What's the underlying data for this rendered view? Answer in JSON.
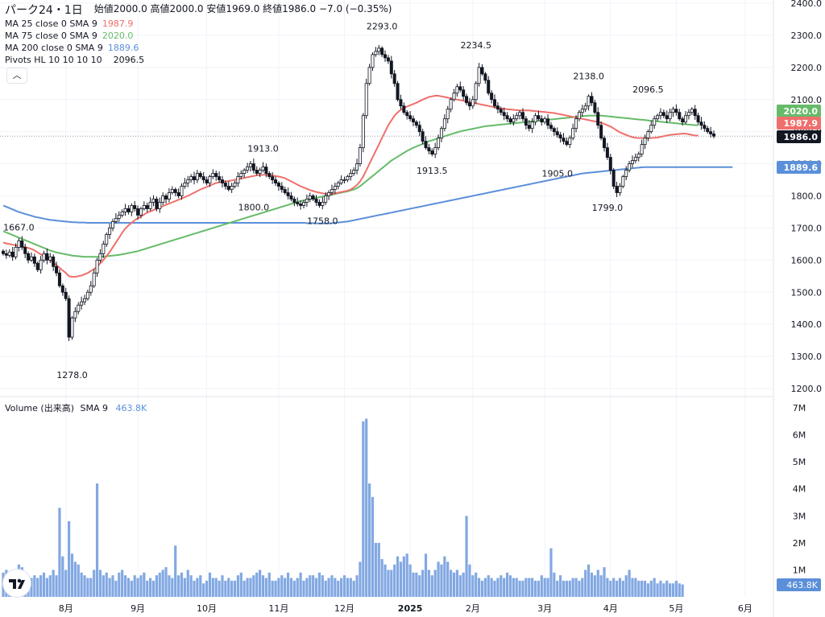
{
  "legend": {
    "symbol": "パーク24・1日",
    "ohlc": "始値2000.0 高値2000.0 安値1969.0 終値1986.0 −7.0 (−0.35%)",
    "ma25_label": "MA 25 close 0 SMA 9",
    "ma25_value": "1987.9",
    "ma75_label": "MA 75 close 0 SMA 9",
    "ma75_value": "2020.0",
    "ma200_label": "MA 200 close 0 SMA 9",
    "ma200_value": "1889.6",
    "pivots_label": "Pivots HL 10 10 10 10",
    "pivots_value": "2096.5",
    "collapse": "︿"
  },
  "volume_legend": {
    "label": "Volume (出来高)",
    "sma": "SMA 9",
    "value": "463.8K"
  },
  "colors": {
    "up": "#ffffff",
    "down": "#131722",
    "ma25": "#ef6f6c",
    "ma75": "#66bb6a",
    "ma200": "#5b8fd9",
    "volume": "#82a8e2"
  },
  "chart_data": {
    "type": "candlestick",
    "price_axis": {
      "ylim": [
        1200,
        2400
      ],
      "ticks": [
        "1200.0",
        "1300.0",
        "1400.0",
        "1500.0",
        "1600.0",
        "1700.0",
        "1800.0",
        "1900.0",
        "2000.0",
        "2100.0",
        "2200.0",
        "2300.0",
        "2400.0"
      ]
    },
    "volume_axis": {
      "ylim": [
        0,
        7000000
      ],
      "ticks": [
        "1M",
        "2M",
        "3M",
        "4M",
        "5M",
        "6M",
        "7M"
      ]
    },
    "time_axis": {
      "ticks": [
        "8月",
        "9月",
        "10月",
        "11月",
        "12月",
        "2025",
        "2月",
        "3月",
        "4月",
        "5月",
        "6月"
      ]
    },
    "last_price": "1986.0",
    "price_labels": [
      {
        "text": "2020.0",
        "series": "ma75"
      },
      {
        "text": "1987.9",
        "series": "ma25"
      },
      {
        "text": "1986.0",
        "series": "last"
      },
      {
        "text": "1889.6",
        "series": "ma200"
      }
    ],
    "volume_last_label": "463.8K",
    "pivots": [
      {
        "label": "1667.0",
        "bar": 5,
        "value": 1667,
        "pos": "above"
      },
      {
        "label": "1278.0",
        "bar": 22,
        "value": 1278,
        "pos": "below"
      },
      {
        "label": "1913.0",
        "bar": 83,
        "value": 1913,
        "pos": "above"
      },
      {
        "label": "1800.0",
        "bar": 80,
        "value": 1800,
        "pos": "below"
      },
      {
        "label": "1758.0",
        "bar": 102,
        "value": 1758,
        "pos": "below"
      },
      {
        "label": "2293.0",
        "bar": 121,
        "value": 2293,
        "pos": "above"
      },
      {
        "label": "1913.5",
        "bar": 137,
        "value": 1913.5,
        "pos": "below"
      },
      {
        "label": "2234.5",
        "bar": 151,
        "value": 2234.5,
        "pos": "above"
      },
      {
        "label": "2138.0",
        "bar": 187,
        "value": 2138,
        "pos": "above"
      },
      {
        "label": "1905.0",
        "bar": 177,
        "value": 1905,
        "pos": "below"
      },
      {
        "label": "1799.0",
        "bar": 193,
        "value": 1799,
        "pos": "below"
      },
      {
        "label": "2096.5",
        "bar": 206,
        "value": 2096.5,
        "pos": "above"
      }
    ],
    "closes": [
      1620,
      1615,
      1625,
      1610,
      1640,
      1660,
      1640,
      1620,
      1600,
      1610,
      1590,
      1570,
      1600,
      1620,
      1600,
      1610,
      1580,
      1560,
      1520,
      1500,
      1480,
      1360,
      1420,
      1440,
      1460,
      1470,
      1480,
      1500,
      1520,
      1560,
      1600,
      1620,
      1650,
      1680,
      1700,
      1720,
      1730,
      1740,
      1750,
      1760,
      1750,
      1770,
      1760,
      1740,
      1760,
      1770,
      1760,
      1780,
      1790,
      1760,
      1780,
      1800,
      1790,
      1810,
      1820,
      1810,
      1800,
      1830,
      1840,
      1850,
      1860,
      1850,
      1870,
      1860,
      1850,
      1840,
      1860,
      1870,
      1860,
      1850,
      1840,
      1830,
      1820,
      1830,
      1840,
      1860,
      1870,
      1880,
      1890,
      1900,
      1880,
      1870,
      1880,
      1890,
      1870,
      1860,
      1850,
      1840,
      1830,
      1820,
      1810,
      1800,
      1790,
      1780,
      1775,
      1770,
      1780,
      1790,
      1800,
      1790,
      1780,
      1770,
      1780,
      1800,
      1810,
      1820,
      1830,
      1840,
      1850,
      1850,
      1860,
      1870,
      1880,
      1900,
      1950,
      2050,
      2150,
      2200,
      2240,
      2250,
      2260,
      2240,
      2230,
      2220,
      2180,
      2150,
      2100,
      2080,
      2060,
      2050,
      2040,
      2030,
      2020,
      2000,
      1970,
      1950,
      1940,
      1930,
      1950,
      1980,
      2010,
      2040,
      2070,
      2100,
      2120,
      2140,
      2130,
      2110,
      2090,
      2080,
      2100,
      2150,
      2200,
      2180,
      2160,
      2120,
      2100,
      2080,
      2070,
      2060,
      2050,
      2040,
      2030,
      2040,
      2050,
      2060,
      2040,
      2020,
      2010,
      2030,
      2050,
      2040,
      2030,
      2040,
      2020,
      2010,
      2000,
      1990,
      1980,
      1970,
      1960,
      1980,
      2010,
      2040,
      2060,
      2070,
      2080,
      2110,
      2090,
      2060,
      2020,
      1980,
      1950,
      1920,
      1880,
      1830,
      1810,
      1830,
      1860,
      1880,
      1900,
      1910,
      1920,
      1930,
      1960,
      1980,
      2000,
      2020,
      2040,
      2050,
      2060,
      2050,
      2040,
      2060,
      2070,
      2060,
      2040,
      2030,
      2050,
      2060,
      2070,
      2050,
      2030,
      2020,
      2010,
      2000,
      1993,
      1986
    ],
    "ma25": [
      1655,
      1652,
      1650,
      1648,
      1646,
      1644,
      1642,
      1640,
      1638,
      1635,
      1630,
      1624,
      1618,
      1612,
      1606,
      1600,
      1592,
      1584,
      1576,
      1568,
      1560,
      1550,
      1548,
      1548,
      1550,
      1552,
      1556,
      1560,
      1566,
      1572,
      1580,
      1590,
      1600,
      1612,
      1625,
      1640,
      1655,
      1670,
      1685,
      1698,
      1708,
      1716,
      1724,
      1730,
      1736,
      1742,
      1748,
      1752,
      1756,
      1760,
      1764,
      1768,
      1772,
      1776,
      1780,
      1784,
      1788,
      1792,
      1796,
      1800,
      1805,
      1810,
      1815,
      1820,
      1824,
      1828,
      1832,
      1836,
      1840,
      1842,
      1844,
      1845,
      1846,
      1848,
      1850,
      1852,
      1854,
      1856,
      1858,
      1860,
      1862,
      1864,
      1865,
      1866,
      1866,
      1865,
      1864,
      1862,
      1860,
      1858,
      1855,
      1850,
      1845,
      1840,
      1835,
      1830,
      1826,
      1822,
      1818,
      1815,
      1812,
      1810,
      1808,
      1806,
      1806,
      1806,
      1808,
      1810,
      1812,
      1814,
      1816,
      1820,
      1826,
      1834,
      1845,
      1860,
      1880,
      1900,
      1920,
      1940,
      1960,
      1980,
      2000,
      2020,
      2035,
      2050,
      2060,
      2068,
      2074,
      2078,
      2082,
      2086,
      2090,
      2095,
      2100,
      2104,
      2108,
      2110,
      2112,
      2112,
      2110,
      2108,
      2106,
      2104,
      2102,
      2100,
      2098,
      2096,
      2094,
      2092,
      2090,
      2088,
      2086,
      2084,
      2082,
      2080,
      2078,
      2076,
      2074,
      2072,
      2071,
      2070,
      2069,
      2068,
      2067,
      2066,
      2066,
      2066,
      2066,
      2065,
      2064,
      2063,
      2062,
      2061,
      2060,
      2059,
      2058,
      2056,
      2054,
      2052,
      2050,
      2048,
      2046,
      2044,
      2042,
      2040,
      2038,
      2036,
      2034,
      2032,
      2030,
      2028,
      2024,
      2020,
      2016,
      2010,
      2004,
      1998,
      1994,
      1990,
      1986,
      1983,
      1981,
      1980,
      1980,
      1980,
      1980,
      1980,
      1981,
      1982,
      1984,
      1986,
      1988,
      1990,
      1991,
      1992,
      1993,
      1994,
      1994,
      1992,
      1990,
      1988,
      1987.9
    ],
    "ma75": [
      1690,
      1686,
      1682,
      1678,
      1674,
      1670,
      1666,
      1662,
      1658,
      1654,
      1650,
      1646,
      1642,
      1638,
      1634,
      1630,
      1627,
      1624,
      1622,
      1620,
      1618,
      1616,
      1614,
      1613,
      1612,
      1611,
      1610,
      1610,
      1610,
      1610,
      1610,
      1610,
      1611,
      1612,
      1613,
      1614,
      1615,
      1616,
      1618,
      1620,
      1622,
      1624,
      1626,
      1628,
      1631,
      1634,
      1637,
      1640,
      1643,
      1646,
      1649,
      1652,
      1655,
      1658,
      1661,
      1664,
      1667,
      1670,
      1673,
      1676,
      1679,
      1682,
      1685,
      1688,
      1691,
      1694,
      1697,
      1700,
      1703,
      1706,
      1709,
      1712,
      1715,
      1718,
      1721,
      1724,
      1727,
      1730,
      1733,
      1736,
      1739,
      1742,
      1745,
      1748,
      1751,
      1754,
      1757,
      1760,
      1763,
      1766,
      1769,
      1772,
      1775,
      1778,
      1781,
      1784,
      1786,
      1788,
      1790,
      1792,
      1794,
      1796,
      1798,
      1800,
      1802,
      1804,
      1806,
      1808,
      1810,
      1812,
      1814,
      1817,
      1820,
      1824,
      1830,
      1838,
      1846,
      1854,
      1862,
      1870,
      1878,
      1886,
      1894,
      1902,
      1910,
      1916,
      1922,
      1928,
      1934,
      1940,
      1945,
      1950,
      1954,
      1958,
      1962,
      1966,
      1970,
      1973,
      1976,
      1980,
      1983,
      1986,
      1989,
      1992,
      1995,
      1998,
      2001,
      2003,
      2005,
      2007,
      2009,
      2011,
      2013,
      2015,
      2017,
      2018,
      2019,
      2020,
      2021,
      2022,
      2023,
      2024,
      2025,
      2026,
      2027,
      2028,
      2029,
      2030,
      2031,
      2032,
      2033,
      2034,
      2035,
      2036,
      2037,
      2038,
      2039,
      2040,
      2041,
      2042,
      2043,
      2044,
      2045,
      2046,
      2047,
      2048,
      2049,
      2050,
      2050,
      2050,
      2050,
      2050,
      2049,
      2048,
      2047,
      2046,
      2045,
      2044,
      2043,
      2042,
      2041,
      2040,
      2039,
      2038,
      2037,
      2036,
      2035,
      2034,
      2033,
      2032,
      2031,
      2030,
      2029,
      2028,
      2027,
      2026,
      2025,
      2024,
      2023,
      2022,
      2021,
      2020.5,
      2020
    ],
    "ma200": [
      1770,
      1766,
      1762,
      1758,
      1754,
      1750,
      1747,
      1744,
      1741,
      1738,
      1735,
      1733,
      1731,
      1729,
      1727,
      1725,
      1724,
      1723,
      1722,
      1721,
      1720,
      1719,
      1718,
      1718,
      1717,
      1717,
      1717,
      1716,
      1716,
      1716,
      1716,
      1716,
      1716,
      1716,
      1716,
      1716,
      1716,
      1716,
      1716,
      1716,
      1716,
      1716,
      1716,
      1716,
      1716,
      1716,
      1716,
      1716,
      1716,
      1716,
      1716,
      1716,
      1716,
      1716,
      1716,
      1716,
      1716,
      1716,
      1716,
      1716,
      1716,
      1716,
      1716,
      1716,
      1716,
      1716,
      1716,
      1716,
      1716,
      1716,
      1716,
      1716,
      1716,
      1716,
      1716,
      1716,
      1716,
      1716,
      1716,
      1716,
      1716,
      1716,
      1716,
      1716,
      1716,
      1716,
      1716,
      1716,
      1716,
      1716,
      1716,
      1716,
      1716,
      1716,
      1716,
      1716,
      1716,
      1715,
      1715,
      1715,
      1714,
      1714,
      1714,
      1714,
      1714,
      1715,
      1716,
      1717,
      1718,
      1719,
      1720,
      1722,
      1724,
      1726,
      1728,
      1730,
      1732,
      1734,
      1736,
      1738,
      1740,
      1742,
      1744,
      1746,
      1748,
      1750,
      1752,
      1754,
      1756,
      1758,
      1760,
      1762,
      1764,
      1766,
      1768,
      1770,
      1772,
      1774,
      1776,
      1778,
      1780,
      1782,
      1784,
      1786,
      1788,
      1790,
      1792,
      1794,
      1796,
      1798,
      1800,
      1802,
      1804,
      1806,
      1808,
      1810,
      1812,
      1814,
      1816,
      1818,
      1820,
      1822,
      1824,
      1826,
      1828,
      1830,
      1832,
      1834,
      1836,
      1838,
      1840,
      1842,
      1844,
      1846,
      1848,
      1850,
      1852,
      1854,
      1856,
      1858,
      1860,
      1862,
      1864,
      1866,
      1868,
      1870,
      1871,
      1872,
      1873,
      1874,
      1875,
      1876,
      1877,
      1878,
      1879,
      1880,
      1881,
      1882,
      1883,
      1884,
      1885,
      1886,
      1887,
      1888,
      1889,
      1889.6,
      1889.6,
      1889.6,
      1889.6,
      1889.6,
      1889.6,
      1889.6,
      1889.6,
      1889.6,
      1889.6,
      1889.6,
      1889.6,
      1889.6,
      1889.6,
      1889.6,
      1889.6,
      1889.6,
      1889.6,
      1889.6,
      1889.6,
      1889.6,
      1889.6,
      1889.6,
      1889.6,
      1889.6,
      1889.6,
      1889.6,
      1889.6,
      1889.6
    ],
    "volumes_m": [
      0.9,
      1.0,
      0.8,
      0.7,
      1.0,
      1.2,
      1.1,
      0.8,
      0.7,
      0.7,
      0.8,
      0.7,
      0.8,
      0.9,
      0.7,
      0.8,
      1.0,
      0.8,
      3.3,
      1.5,
      1.0,
      2.8,
      1.6,
      1.3,
      1.2,
      0.9,
      0.8,
      0.7,
      0.7,
      1.0,
      4.2,
      1.0,
      0.8,
      0.9,
      0.7,
      0.8,
      0.6,
      0.9,
      1.0,
      0.8,
      0.7,
      0.6,
      0.8,
      0.7,
      0.8,
      0.9,
      0.6,
      0.7,
      0.6,
      0.8,
      0.9,
      1.0,
      1.1,
      0.8,
      0.7,
      1.9,
      0.8,
      0.9,
      0.7,
      1.0,
      0.8,
      0.6,
      0.7,
      0.8,
      0.5,
      0.6,
      0.9,
      0.7,
      0.7,
      0.6,
      0.8,
      0.6,
      0.7,
      0.6,
      0.6,
      0.8,
      0.9,
      0.6,
      0.7,
      0.7,
      0.8,
      0.9,
      1.0,
      0.8,
      0.7,
      0.9,
      0.6,
      0.6,
      0.7,
      0.8,
      0.7,
      0.9,
      0.7,
      0.6,
      0.7,
      0.9,
      0.6,
      0.7,
      0.8,
      0.8,
      0.7,
      0.9,
      0.8,
      0.6,
      0.7,
      0.8,
      0.7,
      0.6,
      0.7,
      0.8,
      0.7,
      0.7,
      0.6,
      0.8,
      1.3,
      6.5,
      6.6,
      4.2,
      3.7,
      2.0,
      2.0,
      1.4,
      1.2,
      1.0,
      1.0,
      1.2,
      1.5,
      1.3,
      1.5,
      1.6,
      1.2,
      0.9,
      0.9,
      0.8,
      1.0,
      1.6,
      1.0,
      0.8,
      1.0,
      1.3,
      1.2,
      1.5,
      1.3,
      1.0,
      0.9,
      1.0,
      0.8,
      0.9,
      3.0,
      1.2,
      0.8,
      0.9,
      0.7,
      0.6,
      0.7,
      0.8,
      0.7,
      0.6,
      0.7,
      0.8,
      0.7,
      0.9,
      0.8,
      0.7,
      0.7,
      0.6,
      0.6,
      0.7,
      0.7,
      0.7,
      0.6,
      0.6,
      0.8,
      0.7,
      0.7,
      1.8,
      0.9,
      0.6,
      0.8,
      0.6,
      0.6,
      0.6,
      0.7,
      0.7,
      0.6,
      0.7,
      1.0,
      1.2,
      0.9,
      0.8,
      1.0,
      0.8,
      1.1,
      0.7,
      0.6,
      0.7,
      0.6,
      0.7,
      0.6,
      0.8,
      1.0,
      0.7,
      0.7,
      0.6,
      0.6,
      0.6,
      0.5,
      0.6,
      0.7,
      0.5,
      0.6,
      0.5,
      0.6,
      0.5,
      0.5,
      0.6,
      0.5,
      0.46
    ]
  }
}
